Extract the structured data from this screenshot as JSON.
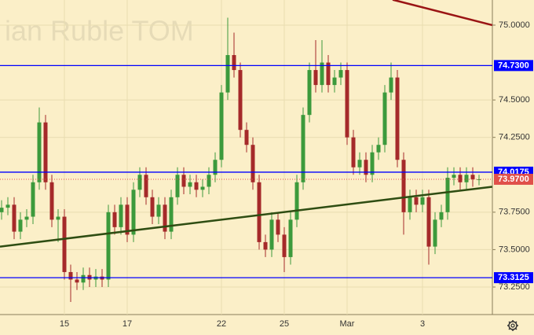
{
  "chart_data": {
    "type": "candlestick",
    "watermark": "ian Ruble TOM",
    "categories": [
      null,
      null,
      null,
      null,
      null,
      null,
      null,
      null,
      null,
      null,
      "15",
      null,
      null,
      null,
      null,
      null,
      null,
      null,
      null,
      null,
      "17",
      null,
      null,
      null,
      null,
      null,
      null,
      null,
      null,
      null,
      null,
      null,
      null,
      null,
      null,
      "22",
      null,
      null,
      null,
      null,
      null,
      null,
      null,
      null,
      null,
      "25",
      null,
      null,
      null,
      null,
      null,
      null,
      null,
      null,
      null,
      "Mar",
      null,
      null,
      null,
      null,
      null,
      null,
      null,
      null,
      null,
      null,
      null,
      "3",
      null,
      null,
      null,
      null,
      null,
      null,
      null,
      null,
      null
    ],
    "open": [
      73.75,
      73.78,
      73.8,
      73.62,
      73.7,
      73.72,
      73.95,
      74.35,
      73.95,
      73.7,
      73.72,
      73.35,
      73.3,
      73.28,
      73.33,
      73.3,
      73.32,
      73.3,
      73.75,
      73.65,
      73.8,
      73.6,
      73.9,
      74.0,
      73.85,
      73.72,
      73.8,
      73.62,
      73.85,
      74.0,
      73.92,
      73.95,
      73.9,
      73.92,
      74.0,
      74.1,
      74.55,
      74.8,
      74.7,
      74.3,
      74.2,
      73.95,
      73.55,
      73.5,
      73.7,
      73.6,
      73.45,
      73.7,
      73.95,
      74.4,
      74.7,
      74.6,
      74.75,
      74.6,
      74.65,
      74.7,
      74.25,
      74.05,
      74.1,
      74.0,
      74.15,
      74.2,
      74.55,
      74.65,
      74.1,
      73.75,
      73.85,
      73.8,
      73.85,
      73.52,
      73.7,
      73.75,
      73.98,
      74.0,
      73.95,
      74.0,
      73.97
    ],
    "high": [
      73.83,
      73.85,
      73.85,
      73.75,
      73.77,
      74.0,
      74.45,
      74.4,
      74.0,
      73.77,
      73.77,
      73.4,
      73.35,
      73.38,
      73.38,
      73.37,
      73.37,
      73.8,
      73.8,
      73.85,
      73.85,
      73.95,
      74.05,
      74.05,
      73.9,
      73.85,
      73.85,
      73.9,
      74.05,
      74.05,
      74.0,
      74.0,
      73.97,
      74.05,
      74.15,
      74.6,
      75.05,
      74.95,
      74.75,
      74.35,
      74.25,
      74.0,
      73.6,
      73.75,
      73.75,
      73.65,
      73.75,
      74.0,
      74.45,
      74.75,
      74.9,
      74.9,
      74.8,
      74.7,
      74.75,
      74.75,
      74.3,
      74.15,
      74.15,
      74.2,
      74.25,
      74.6,
      74.75,
      74.7,
      74.15,
      73.9,
      73.9,
      73.9,
      73.9,
      73.75,
      73.8,
      74.05,
      74.05,
      74.05,
      74.05,
      74.05,
      74.0
    ],
    "low": [
      73.7,
      73.73,
      73.57,
      73.57,
      73.65,
      73.67,
      73.9,
      73.9,
      73.65,
      73.55,
      73.3,
      73.15,
      73.23,
      73.23,
      73.25,
      73.25,
      73.25,
      73.25,
      73.6,
      73.6,
      73.55,
      73.55,
      73.85,
      73.8,
      73.67,
      73.67,
      73.57,
      73.57,
      73.8,
      73.87,
      73.87,
      73.85,
      73.85,
      73.87,
      73.95,
      74.05,
      74.5,
      74.65,
      74.25,
      74.15,
      73.9,
      73.5,
      73.45,
      73.45,
      73.55,
      73.35,
      73.4,
      73.65,
      73.9,
      74.35,
      74.55,
      74.55,
      74.55,
      74.55,
      74.6,
      74.2,
      74.0,
      74.0,
      73.95,
      73.95,
      74.1,
      74.15,
      74.5,
      74.05,
      73.6,
      73.7,
      73.75,
      73.75,
      73.4,
      73.47,
      73.65,
      73.7,
      73.93,
      73.9,
      73.9,
      73.92,
      73.93
    ],
    "close": [
      73.78,
      73.8,
      73.62,
      73.7,
      73.72,
      73.95,
      74.35,
      73.95,
      73.7,
      73.72,
      73.35,
      73.3,
      73.28,
      73.33,
      73.3,
      73.32,
      73.3,
      73.75,
      73.65,
      73.8,
      73.6,
      73.9,
      74.0,
      73.85,
      73.72,
      73.8,
      73.62,
      73.85,
      74.0,
      73.92,
      73.95,
      73.9,
      73.92,
      74.0,
      74.1,
      74.55,
      74.8,
      74.7,
      74.3,
      74.2,
      73.95,
      73.55,
      73.5,
      73.7,
      73.6,
      73.45,
      73.7,
      73.95,
      74.4,
      74.7,
      74.6,
      74.75,
      74.6,
      74.65,
      74.7,
      74.25,
      74.05,
      74.1,
      74.0,
      74.15,
      74.2,
      74.55,
      74.65,
      74.1,
      73.75,
      73.85,
      73.8,
      73.85,
      73.52,
      73.7,
      73.75,
      73.98,
      74.0,
      73.95,
      74.0,
      73.97,
      73.97
    ],
    "up_color": "#3c9a3c",
    "down_color": "#a52a2a",
    "ylim": [
      73.066,
      75.168
    ],
    "yticks": [
      {
        "value": 73.25,
        "label": "73.2500"
      },
      {
        "value": 73.5,
        "label": "73.5000"
      },
      {
        "value": 73.75,
        "label": "73.7500"
      },
      {
        "value": 74.25,
        "label": "74.2500"
      },
      {
        "value": 74.5,
        "label": "74.5000"
      },
      {
        "value": 75.0,
        "label": "75.0000"
      }
    ],
    "grid": true,
    "levels": [
      {
        "value": 74.73,
        "label": "74.7300",
        "color": "#0000ff"
      },
      {
        "value": 74.0175,
        "label": "74.0175",
        "color": "#0000ff"
      },
      {
        "value": 73.3125,
        "label": "73.3125",
        "color": "#0000ff"
      }
    ],
    "last_price": {
      "value": 73.97,
      "label": "73.9700",
      "color": "#e0504a"
    },
    "trend_lines": [
      {
        "color": "#2e4d12",
        "points": [
          [
            -0.25,
            73.52
          ],
          [
            78.1,
            73.92
          ]
        ]
      },
      {
        "color": "#9a1414",
        "points": [
          [
            62.25,
            75.17
          ],
          [
            78.1,
            75.0
          ]
        ]
      }
    ]
  }
}
